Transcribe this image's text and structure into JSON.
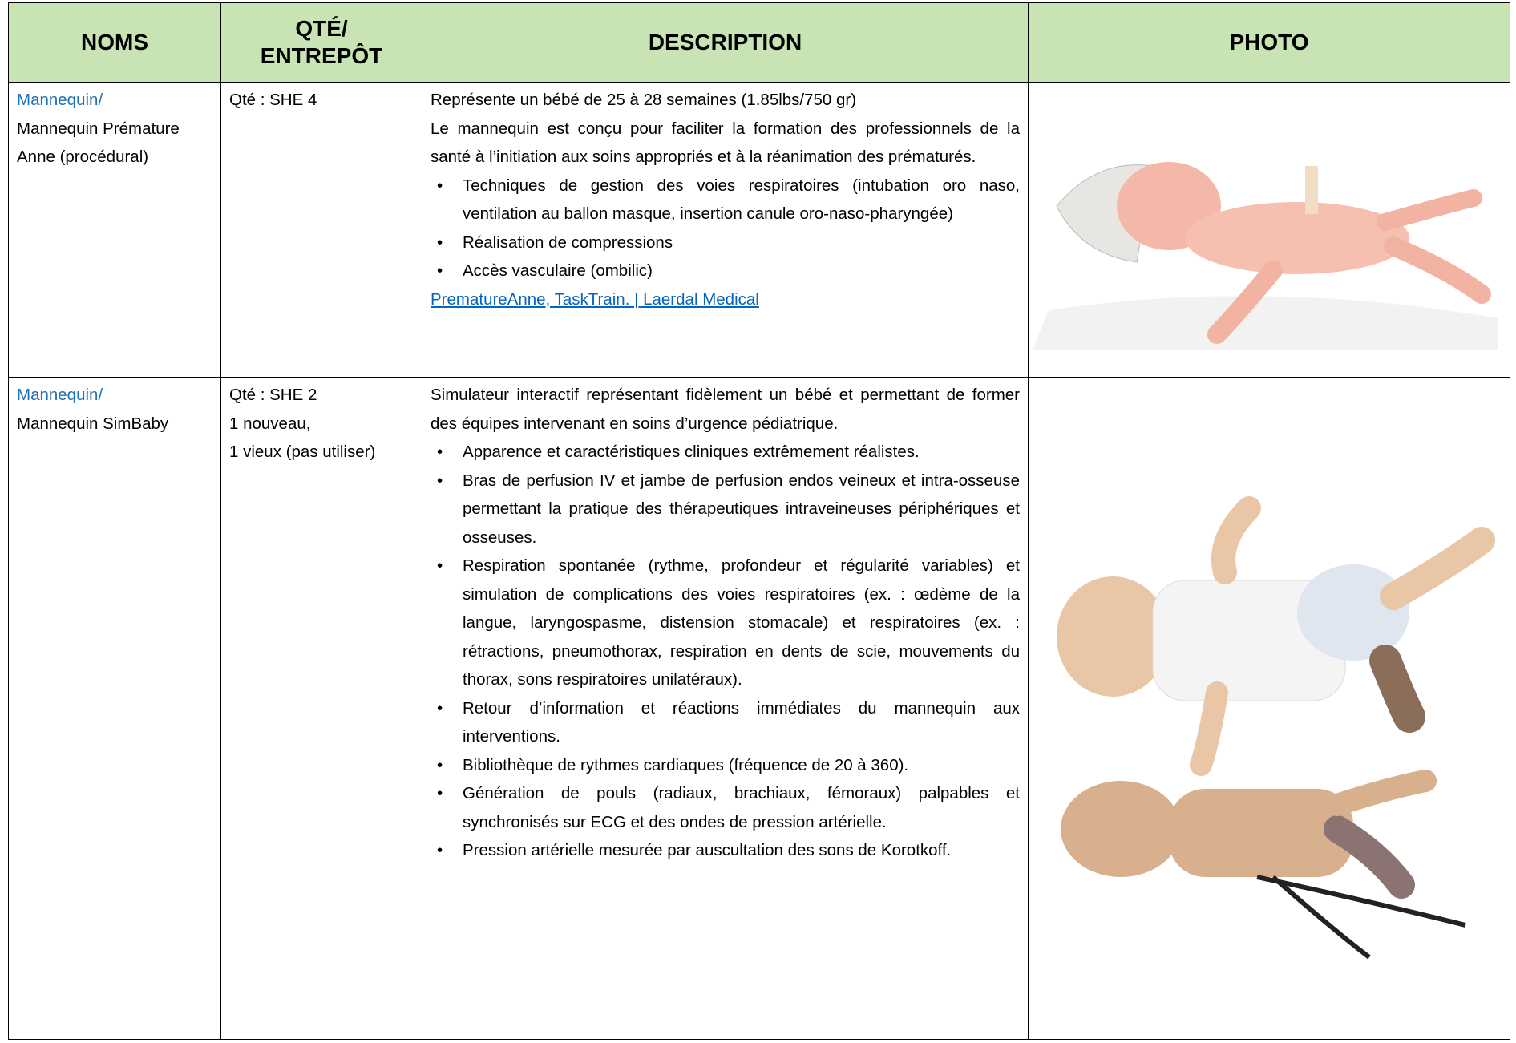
{
  "header": {
    "cells": [
      "NOMS",
      "QTÉ/\nENTREPÔT",
      "DESCRIPTION",
      "PHOTO"
    ]
  },
  "rows": [
    {
      "category": "Mannequin/",
      "name": "Mannequin Prémature Anne (procédural)",
      "qty": [
        "Qté : SHE 4"
      ],
      "paragraphs": [
        "Représente un bébé de 25 à 28 semaines (1.85lbs/750 gr)",
        "Le mannequin est conçu pour faciliter la formation des professionnels de la santé à l’initiation aux soins appropriés et à la réanimation des prématurés."
      ],
      "bullets": [
        "Techniques de gestion des voies respiratoires (intubation oro naso, ventilation au ballon masque, insertion canule oro-naso-pharyngée)",
        "Réalisation de compressions",
        "Accès vasculaire (ombilic)"
      ],
      "link": "PrematureAnne, TaskTrain. | Laerdal Medical"
    },
    {
      "category": "Mannequin/",
      "name": "Mannequin SimBaby",
      "qty": [
        "Qté : SHE 2",
        "1 nouveau,",
        "1 vieux (pas utiliser)"
      ],
      "paragraphs": [
        "Simulateur interactif représentant fidèlement un bébé et permettant de former des équipes intervenant en soins d’urgence pédiatrique."
      ],
      "bullets": [
        "Apparence et caractéristiques cliniques extrêmement réalistes.",
        "Bras de perfusion IV et jambe de perfusion endos veineux et intra-osseuse permettant la pratique des thérapeutiques intraveineuses périphériques et osseuses.",
        "Respiration spontanée (rythme, profondeur et régularité variables) et simulation de complications des voies respiratoires (ex. : œdème de la langue, laryngospasme, distension stomacale) et respiratoires (ex. : rétractions, pneumothorax, respiration en dents de scie, mouvements du thorax, sons respiratoires unilatéraux).",
        "Retour d’information et réactions immédiates du mannequin aux interventions.",
        "Bibliothèque de rythmes cardiaques (fréquence de 20 à 360).",
        "Génération de pouls (radiaux, brachiaux, fémoraux) palpables et synchronisés sur ECG et des ondes de pression artérielle.",
        "Pression artérielle mesurée par auscultation des sons de Korotkoff."
      ]
    }
  ]
}
